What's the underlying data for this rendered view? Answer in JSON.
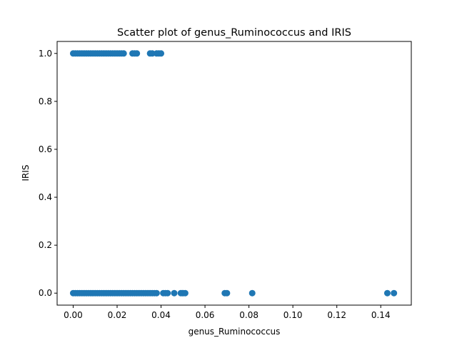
{
  "chart_data": {
    "type": "scatter",
    "title": "Scatter plot of genus_Ruminococcus and IRIS",
    "xlabel": "genus_Ruminococcus",
    "ylabel": "IRIS",
    "xlim": [
      -0.0073,
      0.1539
    ],
    "ylim": [
      -0.05,
      1.05
    ],
    "xticks": [
      0.0,
      0.02,
      0.04,
      0.06,
      0.08,
      0.1,
      0.12,
      0.14
    ],
    "xtick_labels": [
      "0.00",
      "0.02",
      "0.04",
      "0.06",
      "0.08",
      "0.10",
      "0.12",
      "0.14"
    ],
    "yticks": [
      0.0,
      0.2,
      0.4,
      0.6,
      0.8,
      1.0
    ],
    "ytick_labels": [
      "0.0",
      "0.2",
      "0.4",
      "0.6",
      "0.8",
      "1.0"
    ],
    "grid": false,
    "marker_color": "#1f77b4",
    "series": [
      {
        "x": [
          0.0,
          0.001,
          0.002,
          0.003,
          0.004,
          0.005,
          0.006,
          0.007,
          0.008,
          0.009,
          0.01,
          0.011,
          0.012,
          0.013,
          0.014,
          0.015,
          0.016,
          0.017,
          0.018,
          0.019,
          0.02,
          0.021,
          0.022,
          0.023,
          0.027,
          0.028,
          0.029,
          0.035,
          0.036,
          0.038,
          0.039,
          0.04,
          0.0,
          0.001,
          0.002,
          0.003,
          0.004,
          0.005,
          0.006,
          0.007,
          0.008,
          0.009,
          0.01,
          0.011,
          0.012,
          0.013,
          0.014,
          0.015,
          0.016,
          0.017,
          0.018,
          0.019,
          0.02,
          0.021,
          0.022,
          0.023,
          0.024,
          0.025,
          0.026,
          0.027,
          0.028,
          0.029,
          0.03,
          0.031,
          0.032,
          0.033,
          0.034,
          0.035,
          0.036,
          0.037,
          0.038,
          0.041,
          0.042,
          0.043,
          0.046,
          0.049,
          0.05,
          0.051,
          0.069,
          0.07,
          0.0815,
          0.143,
          0.146
        ],
        "y": [
          1,
          1,
          1,
          1,
          1,
          1,
          1,
          1,
          1,
          1,
          1,
          1,
          1,
          1,
          1,
          1,
          1,
          1,
          1,
          1,
          1,
          1,
          1,
          1,
          1,
          1,
          1,
          1,
          1,
          1,
          1,
          1,
          0,
          0,
          0,
          0,
          0,
          0,
          0,
          0,
          0,
          0,
          0,
          0,
          0,
          0,
          0,
          0,
          0,
          0,
          0,
          0,
          0,
          0,
          0,
          0,
          0,
          0,
          0,
          0,
          0,
          0,
          0,
          0,
          0,
          0,
          0,
          0,
          0,
          0,
          0,
          0,
          0,
          0,
          0,
          0,
          0,
          0,
          0,
          0,
          0,
          0,
          0
        ]
      }
    ]
  }
}
